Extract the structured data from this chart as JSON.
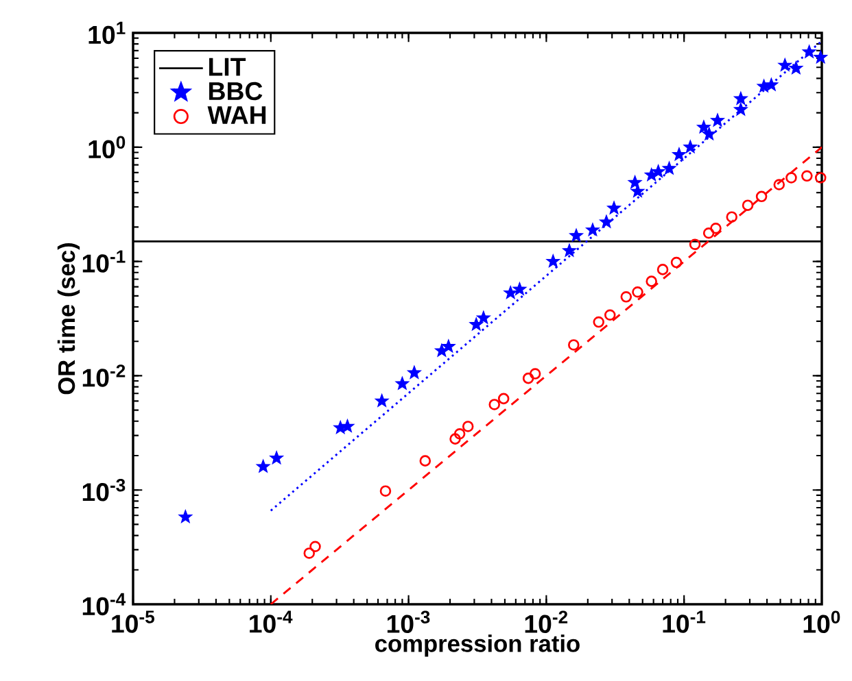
{
  "chart_data": {
    "type": "scatter",
    "xlabel": "compression ratio",
    "ylabel": "OR time (sec)",
    "log": "xy",
    "grid": false,
    "legend": "top left",
    "xlim": [
      1e-05,
      1
    ],
    "ylim": [
      0.0001,
      10
    ],
    "xticks": [
      {
        "value": 1e-05,
        "label": "10$^{-5}$"
      },
      {
        "value": 0.0001,
        "label": "10$^{-4}$"
      },
      {
        "value": 0.001,
        "label": "10$^{-3}$"
      },
      {
        "value": 0.01,
        "label": "10$^{-2}$"
      },
      {
        "value": 0.1,
        "label": "10$^{-1}$"
      },
      {
        "value": 1,
        "label": "10$^{0}$"
      }
    ],
    "yticks": [
      {
        "value": 0.0001,
        "label": "10$^{-4}$"
      },
      {
        "value": 0.001,
        "label": "10$^{-3}$"
      },
      {
        "value": 0.01,
        "label": "10$^{-2}$"
      },
      {
        "value": 0.1,
        "label": "10$^{-1}$"
      },
      {
        "value": 1,
        "label": "10$^{0}$"
      },
      {
        "value": 10,
        "label": "10$^{1}$"
      }
    ],
    "series": [
      {
        "name": "LIT",
        "type": "line",
        "color": "#000000",
        "marker": "none",
        "line_style": "solid",
        "x": [
          1e-05,
          1
        ],
        "values": [
          0.15,
          0.15
        ]
      },
      {
        "name": "BBC",
        "color": "#0000ff",
        "marker": "star",
        "x": [
          2.4e-05,
          8.8e-05,
          0.00011,
          0.00032,
          0.00036,
          0.00064,
          0.0009,
          0.0011,
          0.00174,
          0.00195,
          0.0031,
          0.0035,
          0.0055,
          0.0064,
          0.0112,
          0.0147,
          0.0165,
          0.0217,
          0.0273,
          0.031,
          0.044,
          0.046,
          0.058,
          0.065,
          0.078,
          0.092,
          0.111,
          0.139,
          0.152,
          0.175,
          0.258,
          0.258,
          0.38,
          0.43,
          0.54,
          0.65,
          0.81,
          0.98
        ],
        "values": [
          0.00058,
          0.0016,
          0.0019,
          0.0035,
          0.0036,
          0.006,
          0.0085,
          0.0106,
          0.0165,
          0.018,
          0.028,
          0.032,
          0.053,
          0.057,
          0.1,
          0.124,
          0.168,
          0.188,
          0.221,
          0.292,
          0.49,
          0.41,
          0.57,
          0.61,
          0.65,
          0.86,
          1.0,
          1.49,
          1.3,
          1.71,
          2.65,
          2.13,
          3.4,
          3.5,
          5.2,
          4.9,
          6.8,
          6.1
        ]
      },
      {
        "name": "WAH",
        "color": "#ff0000",
        "marker": "circle",
        "x": [
          0.00019,
          0.00021,
          0.00068,
          0.00132,
          0.00218,
          0.00235,
          0.0027,
          0.0042,
          0.0049,
          0.0074,
          0.0083,
          0.0158,
          0.024,
          0.029,
          0.038,
          0.046,
          0.058,
          0.07,
          0.088,
          0.12,
          0.151,
          0.17,
          0.222,
          0.29,
          0.365,
          0.49,
          0.6,
          0.78,
          0.98
        ],
        "values": [
          0.00028,
          0.00032,
          0.00098,
          0.0018,
          0.0028,
          0.0031,
          0.0036,
          0.0056,
          0.0063,
          0.0095,
          0.0104,
          0.0186,
          0.0295,
          0.034,
          0.049,
          0.054,
          0.067,
          0.085,
          0.098,
          0.141,
          0.177,
          0.195,
          0.245,
          0.31,
          0.37,
          0.47,
          0.54,
          0.56,
          0.54
        ]
      },
      {
        "type": "line",
        "color": "#0000ff",
        "marker": "none",
        "line_style": "dotted",
        "x": [
          0.0001,
          1
        ],
        "values": [
          0.00066,
          8.5
        ]
      },
      {
        "type": "line",
        "color": "#ff0000",
        "marker": "none",
        "line_style": "dashed",
        "x": [
          0.0001,
          1
        ],
        "values": [
          0.0001,
          1.0
        ]
      }
    ]
  }
}
